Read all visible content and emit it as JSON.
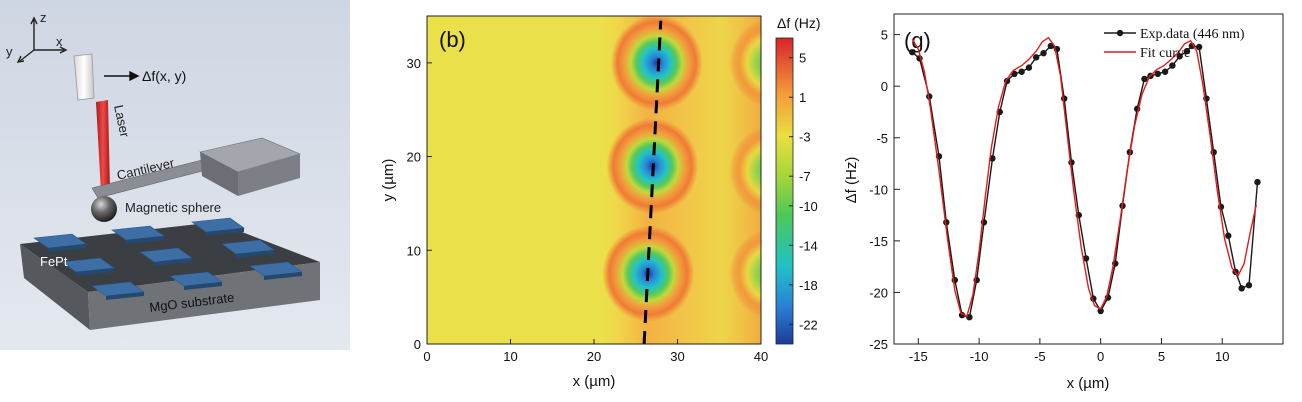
{
  "panel_a": {
    "axes": {
      "z": "z",
      "x": "x",
      "y": "y"
    },
    "signal_label": "Δf(x, y)",
    "laser_label": "Laser",
    "cantilever_label": "Cantilever",
    "sphere_label": "Magnetic sphere",
    "film_label": "FePt",
    "substrate_label": "MgO substrate",
    "colors": {
      "background": "#d6dce8",
      "laser": "#d22b2b",
      "pads": "#3d6fa6",
      "substrate": "#6f7378"
    }
  },
  "chart_data": [
    {
      "type": "heatmap",
      "panel_label": "(b)",
      "title": "",
      "xlabel": "x (µm)",
      "ylabel": "y (µm)",
      "xlim": [
        0,
        40
      ],
      "ylim": [
        0,
        35
      ],
      "x_ticks": [
        "0",
        "10",
        "20",
        "30",
        "40"
      ],
      "y_ticks": [
        "0",
        "10",
        "20",
        "30"
      ],
      "colorbar": {
        "label": "Δf (Hz)",
        "ticks": [
          "5",
          "1",
          "-3",
          "-7",
          "-10",
          "-14",
          "-18",
          "-22"
        ],
        "range": [
          -24,
          7
        ]
      },
      "spots": [
        {
          "x": 27.5,
          "y": 30.0,
          "min_value": -22
        },
        {
          "x": 27.0,
          "y": 19.0,
          "min_value": -20
        },
        {
          "x": 26.5,
          "y": 7.5,
          "min_value": -22
        },
        {
          "x": 41.0,
          "y": 30.0,
          "min_value": -10
        },
        {
          "x": 41.0,
          "y": 18.5,
          "min_value": -10
        },
        {
          "x": 41.0,
          "y": 7.5,
          "min_value": -10
        }
      ],
      "scan_line": {
        "x": [
          26.0,
          28.0
        ],
        "y": [
          0,
          34.5
        ],
        "style": "dashed",
        "color": "#000000"
      }
    },
    {
      "type": "line",
      "panel_label": "(g)",
      "title": "",
      "xlabel": "x (µm)",
      "ylabel": "Δf (Hz)",
      "xlim": [
        -17,
        15
      ],
      "ylim": [
        -25,
        7
      ],
      "x_ticks": [
        "-15",
        "-10",
        "-5",
        "0",
        "5",
        "10"
      ],
      "y_ticks": [
        "5",
        "0",
        "-5",
        "-10",
        "-15",
        "-20",
        "-25"
      ],
      "legend_position": "top-right",
      "series": [
        {
          "name": "Exp.data (446 nm)",
          "color": "#1a1a1a",
          "marker": "circle",
          "x": [
            -15.5,
            -14.9,
            -14.1,
            -13.3,
            -12.7,
            -12.0,
            -11.4,
            -10.8,
            -10.2,
            -9.6,
            -8.9,
            -8.3,
            -7.7,
            -7.1,
            -6.5,
            -5.9,
            -5.3,
            -4.7,
            -4.1,
            -3.6,
            -3.0,
            -2.4,
            -1.8,
            -1.2,
            -0.6,
            0.0,
            0.6,
            1.2,
            1.8,
            2.4,
            3.0,
            3.6,
            4.1,
            4.7,
            5.3,
            5.9,
            6.5,
            7.1,
            7.5,
            8.1,
            8.7,
            9.3,
            9.9,
            10.5,
            11.1,
            11.6,
            12.2,
            12.9
          ],
          "y": [
            3.3,
            2.7,
            -1.0,
            -6.8,
            -13.2,
            -18.8,
            -22.2,
            -22.4,
            -18.8,
            -13.2,
            -7.0,
            -2.5,
            0.5,
            1.2,
            1.4,
            1.8,
            2.8,
            3.2,
            3.9,
            3.6,
            -1.2,
            -7.4,
            -12.5,
            -16.7,
            -20.6,
            -21.8,
            -20.5,
            -17.2,
            -11.6,
            -6.4,
            -2.2,
            0.7,
            1.0,
            1.2,
            1.4,
            2.0,
            2.9,
            3.4,
            3.9,
            3.8,
            -1.2,
            -6.4,
            -11.7,
            -14.5,
            -18.0,
            -19.6,
            -19.3,
            -9.3
          ]
        },
        {
          "name": "Fit curve",
          "color": "#e01c1c",
          "marker": "none",
          "x": [
            -15.5,
            -15.0,
            -14.5,
            -14.0,
            -13.3,
            -12.6,
            -12.0,
            -11.5,
            -11.0,
            -10.5,
            -10.0,
            -9.5,
            -9.0,
            -8.4,
            -7.8,
            -7.2,
            -6.5,
            -5.9,
            -5.3,
            -4.8,
            -4.3,
            -3.8,
            -3.3,
            -2.8,
            -2.2,
            -1.6,
            -1.0,
            -0.5,
            0.0,
            0.5,
            1.0,
            1.6,
            2.2,
            2.8,
            3.4,
            4.0,
            4.6,
            5.2,
            5.8,
            6.4,
            6.9,
            7.4,
            7.9,
            8.4,
            9.0,
            9.6,
            10.2,
            10.8,
            11.3,
            11.8,
            12.3,
            12.8
          ],
          "y": [
            4.6,
            3.6,
            1.4,
            -2.2,
            -8.2,
            -14.8,
            -19.8,
            -22.0,
            -22.3,
            -20.2,
            -16.0,
            -10.8,
            -6.0,
            -2.0,
            0.5,
            1.5,
            2.0,
            2.6,
            3.4,
            4.3,
            4.7,
            3.9,
            1.0,
            -4.2,
            -10.3,
            -15.6,
            -19.6,
            -21.3,
            -21.6,
            -20.4,
            -17.6,
            -13.0,
            -8.0,
            -3.8,
            -0.8,
            0.9,
            1.6,
            2.0,
            2.6,
            3.3,
            4.1,
            4.4,
            3.4,
            0.2,
            -4.8,
            -10.2,
            -14.8,
            -17.6,
            -18.4,
            -17.2,
            -14.2,
            -11.5
          ]
        }
      ]
    }
  ]
}
